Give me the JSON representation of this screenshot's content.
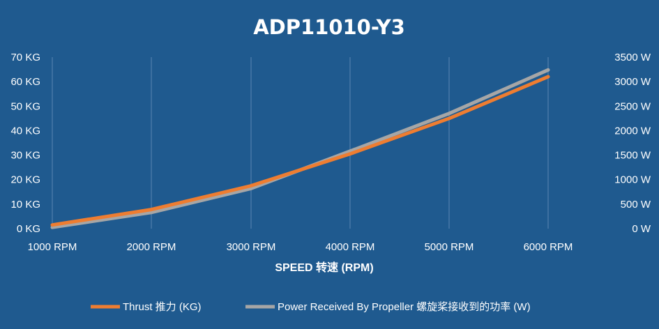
{
  "chart_data": {
    "type": "line",
    "title": "ADP11010-Y3",
    "xlabel": "SPEED 转速 (RPM)",
    "categories": [
      "1000 RPM",
      "2000 RPM",
      "3000 RPM",
      "4000 RPM",
      "5000 RPM",
      "6000 RPM"
    ],
    "x": [
      1000,
      2000,
      3000,
      4000,
      5000,
      6000
    ],
    "y_left": {
      "ticks": [
        "0 KG",
        "10 KG",
        "20 KG",
        "30 KG",
        "40 KG",
        "50 KG",
        "60 KG",
        "70 KG"
      ],
      "range": [
        0,
        70
      ]
    },
    "y_right": {
      "ticks": [
        "0 W",
        "500 W",
        "1000 W",
        "1500 W",
        "2000 W",
        "2500 W",
        "3000 W",
        "3500 W"
      ],
      "range": [
        0,
        3500
      ]
    },
    "grid": "vertical",
    "legend_position": "bottom",
    "series": [
      {
        "name": "Thrust 推力 (KG)",
        "axis": "left",
        "color": "#ee7d31",
        "values": [
          1.5,
          7.8,
          17.5,
          30.5,
          45,
          62
        ]
      },
      {
        "name": "Power Received By Propeller 螺旋桨接收到的功率 (W)",
        "axis": "right",
        "color": "#a6a6a6",
        "values": [
          25,
          330,
          820,
          1580,
          2350,
          3240
        ]
      }
    ]
  }
}
